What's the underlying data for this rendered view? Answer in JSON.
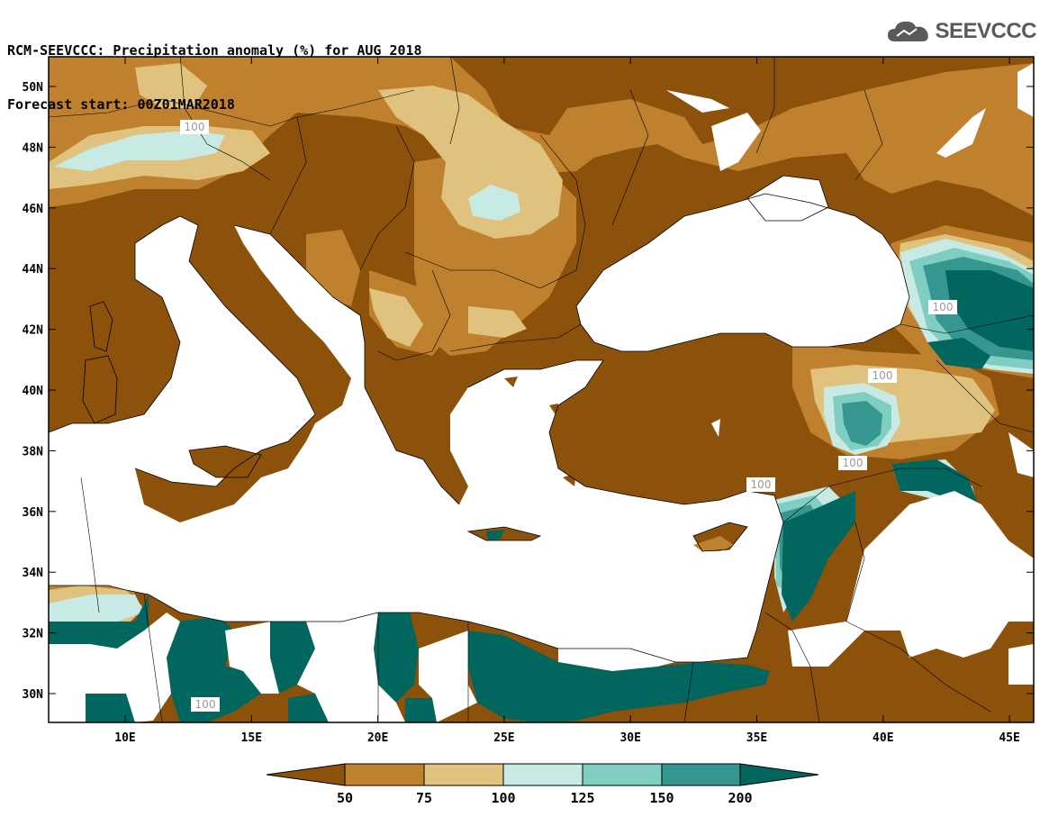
{
  "header": {
    "title_line1": "RCM-SEEVCCC: Precipitation anomaly (%) for AUG 2018",
    "title_line2": "Forecast start: 00Z01MAR2018"
  },
  "logo": {
    "text": "SEEVCCC",
    "icon": "cloud-icon"
  },
  "map": {
    "lon_ticks": [
      "10E",
      "15E",
      "20E",
      "25E",
      "30E",
      "35E",
      "40E",
      "45E"
    ],
    "lat_ticks": [
      "50N",
      "48N",
      "46N",
      "44N",
      "42N",
      "40N",
      "38N",
      "36N",
      "34N",
      "32N",
      "30N"
    ],
    "contour_labels": [
      "100",
      "100",
      "100",
      "100",
      "100",
      "100"
    ],
    "colors": {
      "below50": "#8c510a",
      "50to75": "#bf812d",
      "75to100": "#dfc27d",
      "100to125": "#c7eae5",
      "125to150": "#80cdc1",
      "150to200": "#35978f",
      "above200": "#01665e",
      "sea": "#ffffff"
    }
  },
  "colorbar": {
    "labels": [
      "50",
      "75",
      "100",
      "125",
      "150",
      "200"
    ]
  }
}
